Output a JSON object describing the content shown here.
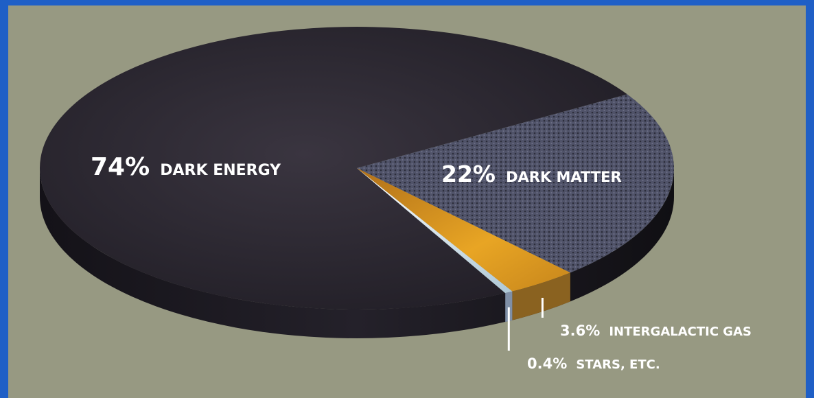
{
  "colors": {
    "frame": "#1f5fc6",
    "background": "#979982",
    "dark_energy": "#2a2630",
    "dark_matter": "#4e5064",
    "intergalactic_gas": "#e0a020",
    "stars": "#e6ecf2"
  },
  "chart_data": {
    "type": "pie",
    "style": "3d-tilted",
    "title": "",
    "slices": [
      {
        "pct_label": "74%",
        "name": "DARK ENERGY",
        "value": 74
      },
      {
        "pct_label": "22%",
        "name": "DARK MATTER",
        "value": 22
      },
      {
        "pct_label": "3.6%",
        "name": "INTERGALACTIC GAS",
        "value": 3.6
      },
      {
        "pct_label": "0.4%",
        "name": "STARS, ETC.",
        "value": 0.4
      }
    ]
  }
}
